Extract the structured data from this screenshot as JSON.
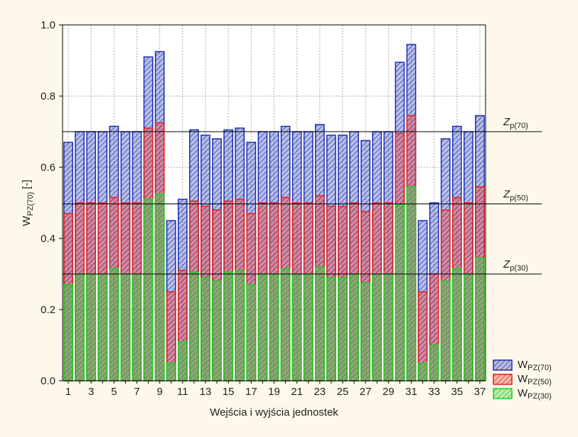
{
  "chart_data": {
    "type": "bar",
    "ylabel": {
      "main": "W",
      "sub": "PZ(70)",
      "tail": "[-]"
    },
    "xlabel": "Wejścia i wyjścia jednostek",
    "categories": [
      "1",
      null,
      "3",
      null,
      "5",
      null,
      "7",
      null,
      "9",
      null,
      "11",
      null,
      "13",
      null,
      "15",
      null,
      "17",
      null,
      "19",
      null,
      "21",
      null,
      "23",
      null,
      "25",
      null,
      "27",
      null,
      "29",
      null,
      "31",
      null,
      "33",
      null,
      "35",
      null,
      "37"
    ],
    "series": [
      {
        "name": "W",
        "subscript": "PZ(70)",
        "color": "#1a2fb0",
        "values": [
          0.67,
          0.7,
          0.7,
          0.7,
          0.715,
          0.7,
          0.7,
          0.91,
          0.925,
          0.45,
          0.51,
          0.705,
          0.69,
          0.68,
          0.705,
          0.71,
          0.67,
          0.7,
          0.7,
          0.715,
          0.7,
          0.7,
          0.72,
          0.69,
          0.69,
          0.7,
          0.675,
          0.7,
          0.7,
          0.895,
          0.945,
          0.45,
          0.5,
          0.68,
          0.715,
          0.7,
          0.745
        ]
      },
      {
        "name": "W",
        "subscript": "PZ(50)",
        "color": "#e02020",
        "values": [
          0.47,
          0.5,
          0.5,
          0.5,
          0.515,
          0.5,
          0.5,
          0.71,
          0.725,
          0.25,
          0.31,
          0.505,
          0.49,
          0.48,
          0.505,
          0.51,
          0.47,
          0.5,
          0.5,
          0.515,
          0.5,
          0.5,
          0.52,
          0.49,
          0.49,
          0.5,
          0.475,
          0.5,
          0.5,
          0.695,
          0.745,
          0.25,
          0.3,
          0.48,
          0.515,
          0.5,
          0.545
        ]
      },
      {
        "name": "W",
        "subscript": "PZ(30)",
        "color": "#22cc22",
        "values": [
          0.27,
          0.3,
          0.3,
          0.3,
          0.315,
          0.3,
          0.3,
          0.51,
          0.525,
          0.05,
          0.11,
          0.305,
          0.29,
          0.28,
          0.305,
          0.31,
          0.27,
          0.3,
          0.3,
          0.315,
          0.3,
          0.3,
          0.32,
          0.29,
          0.29,
          0.3,
          0.275,
          0.3,
          0.3,
          0.495,
          0.545,
          0.05,
          0.1,
          0.28,
          0.315,
          0.3,
          0.345
        ]
      }
    ],
    "reference_lines": [
      {
        "value": 0.7,
        "label": "Z",
        "subscript": "p(70)"
      },
      {
        "value": 0.497,
        "label": "Z",
        "subscript": "p(50)"
      },
      {
        "value": 0.3,
        "label": "Z",
        "subscript": "p(30)"
      }
    ],
    "ylim": [
      0,
      1
    ],
    "yticks": [
      {
        "value": 0,
        "label": "0.0"
      },
      0.2,
      0.4,
      0.6,
      0.8,
      {
        "value": 1,
        "label": "1.0"
      }
    ],
    "grid": true,
    "legend": "lower right"
  }
}
